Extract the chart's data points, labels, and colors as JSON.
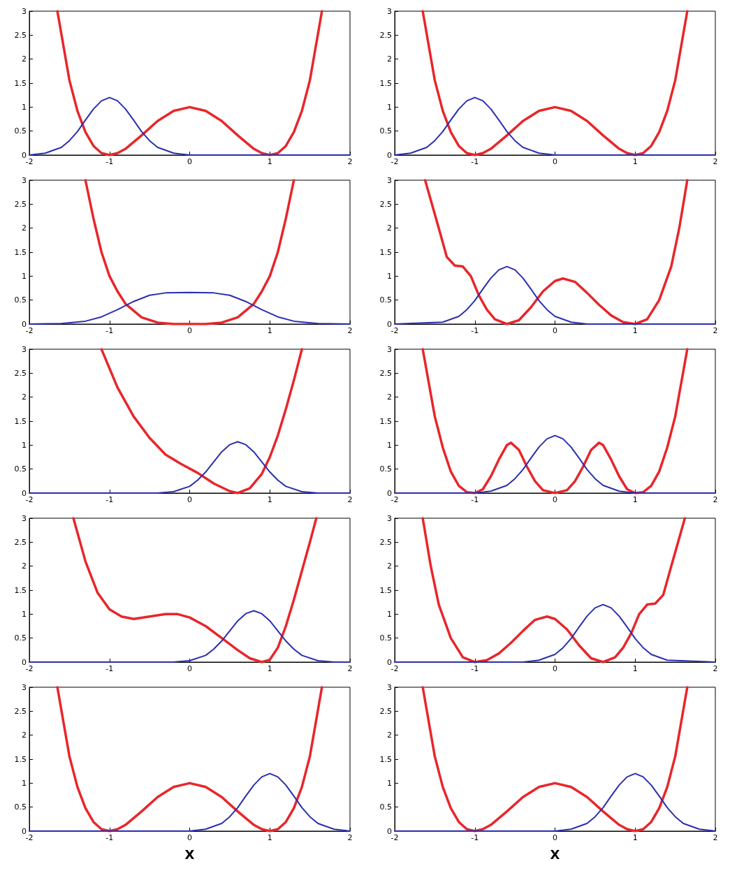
{
  "chart_data": [
    {
      "type": "line",
      "xlim": [
        -2,
        2
      ],
      "ylim": [
        0,
        3
      ],
      "xticks": [
        -2,
        -1,
        0,
        1,
        2
      ],
      "yticks": [
        0,
        0.5,
        1,
        1.5,
        2,
        2.5,
        3
      ],
      "series": [
        {
          "color": "#e8262a",
          "x": [
            -1.65,
            -1.5,
            -1.4,
            -1.3,
            -1.2,
            -1.1,
            -1,
            -0.9,
            -0.8,
            -0.6,
            -0.4,
            -0.2,
            0,
            0.2,
            0.4,
            0.6,
            0.8,
            0.9,
            1,
            1.1,
            1.2,
            1.3,
            1.4,
            1.5,
            1.65
          ],
          "values": [
            3,
            1.56,
            0.92,
            0.48,
            0.19,
            0.04,
            0,
            0.04,
            0.13,
            0.41,
            0.71,
            0.92,
            1,
            0.92,
            0.71,
            0.41,
            0.13,
            0.04,
            0,
            0.04,
            0.19,
            0.48,
            0.92,
            1.56,
            3
          ]
        },
        {
          "color": "#2a2fb0",
          "x": [
            -2,
            -1.8,
            -1.6,
            -1.5,
            -1.4,
            -1.3,
            -1.2,
            -1.1,
            -1,
            -0.9,
            -0.8,
            -0.7,
            -0.6,
            -0.5,
            -0.4,
            -0.2,
            0,
            2
          ],
          "values": [
            0,
            0.04,
            0.16,
            0.3,
            0.49,
            0.73,
            0.96,
            1.13,
            1.2,
            1.13,
            0.96,
            0.73,
            0.49,
            0.3,
            0.16,
            0.04,
            0,
            0
          ]
        }
      ]
    },
    {
      "type": "line",
      "xlim": [
        -2,
        2
      ],
      "ylim": [
        0,
        3
      ],
      "xticks": [
        -2,
        -1,
        0,
        1,
        2
      ],
      "yticks": [
        0,
        0.5,
        1,
        1.5,
        2,
        2.5,
        3
      ],
      "series": [
        {
          "color": "#e8262a",
          "x": [
            -1.65,
            -1.5,
            -1.4,
            -1.3,
            -1.2,
            -1.1,
            -1,
            -0.9,
            -0.8,
            -0.6,
            -0.4,
            -0.2,
            0,
            0.2,
            0.4,
            0.6,
            0.8,
            0.9,
            1,
            1.1,
            1.2,
            1.3,
            1.4,
            1.5,
            1.65
          ],
          "values": [
            3,
            1.56,
            0.92,
            0.48,
            0.19,
            0.04,
            0,
            0.04,
            0.13,
            0.41,
            0.71,
            0.92,
            1,
            0.92,
            0.71,
            0.41,
            0.13,
            0.04,
            0,
            0.04,
            0.19,
            0.48,
            0.92,
            1.56,
            3
          ]
        },
        {
          "color": "#2a2fb0",
          "x": [
            -2,
            -1.8,
            -1.6,
            -1.5,
            -1.4,
            -1.3,
            -1.2,
            -1.1,
            -1,
            -0.9,
            -0.8,
            -0.7,
            -0.6,
            -0.5,
            -0.4,
            -0.2,
            0,
            2
          ],
          "values": [
            0,
            0.04,
            0.16,
            0.3,
            0.49,
            0.73,
            0.96,
            1.13,
            1.2,
            1.13,
            0.96,
            0.73,
            0.49,
            0.3,
            0.16,
            0.04,
            0,
            0
          ]
        }
      ]
    },
    {
      "type": "line",
      "xlim": [
        -2,
        2
      ],
      "ylim": [
        0,
        3
      ],
      "xticks": [
        -2,
        -1,
        0,
        1,
        2
      ],
      "yticks": [
        0,
        0.5,
        1,
        1.5,
        2,
        2.5,
        3
      ],
      "series": [
        {
          "color": "#e8262a",
          "x": [
            -1.3,
            -1.2,
            -1.1,
            -1,
            -0.9,
            -0.8,
            -0.6,
            -0.4,
            -0.2,
            0,
            0.2,
            0.4,
            0.6,
            0.8,
            0.9,
            1,
            1.1,
            1.2,
            1.3
          ],
          "values": [
            3,
            2.2,
            1.5,
            1,
            0.68,
            0.42,
            0.14,
            0.03,
            0,
            0,
            0,
            0.03,
            0.14,
            0.42,
            0.68,
            1,
            1.5,
            2.2,
            3
          ]
        },
        {
          "color": "#2a2fb0",
          "x": [
            -2,
            -1.6,
            -1.3,
            -1.1,
            -0.9,
            -0.7,
            -0.5,
            -0.3,
            0,
            0.3,
            0.5,
            0.7,
            0.9,
            1.1,
            1.3,
            1.6,
            2
          ],
          "values": [
            0,
            0.01,
            0.06,
            0.15,
            0.3,
            0.47,
            0.6,
            0.65,
            0.66,
            0.65,
            0.6,
            0.47,
            0.3,
            0.15,
            0.06,
            0.01,
            0
          ]
        }
      ]
    },
    {
      "type": "line",
      "xlim": [
        -2,
        2
      ],
      "ylim": [
        0,
        3
      ],
      "xticks": [
        -2,
        -1,
        0,
        1,
        2
      ],
      "yticks": [
        0,
        0.5,
        1,
        1.5,
        2,
        2.5,
        3
      ],
      "series": [
        {
          "color": "#e8262a",
          "x": [
            -1.62,
            -1.45,
            -1.35,
            -1.25,
            -1.15,
            -1.05,
            -0.95,
            -0.85,
            -0.75,
            -0.6,
            -0.45,
            -0.3,
            -0.15,
            0,
            0.1,
            0.25,
            0.4,
            0.55,
            0.7,
            0.85,
            1,
            1.15,
            1.3,
            1.45,
            1.55,
            1.65
          ],
          "values": [
            3,
            2,
            1.4,
            1.22,
            1.2,
            1,
            0.6,
            0.3,
            0.1,
            0,
            0.08,
            0.35,
            0.68,
            0.9,
            0.95,
            0.88,
            0.65,
            0.4,
            0.18,
            0.04,
            0,
            0.1,
            0.5,
            1.2,
            2,
            3
          ]
        },
        {
          "color": "#2a2fb0",
          "x": [
            -2,
            -1.4,
            -1.2,
            -1.1,
            -1,
            -0.9,
            -0.8,
            -0.7,
            -0.6,
            -0.5,
            -0.4,
            -0.3,
            -0.2,
            -0.1,
            0,
            0.2,
            0.4,
            2
          ],
          "values": [
            0,
            0.04,
            0.16,
            0.3,
            0.49,
            0.73,
            0.96,
            1.13,
            1.2,
            1.13,
            0.96,
            0.73,
            0.49,
            0.3,
            0.16,
            0.04,
            0,
            0
          ]
        }
      ]
    },
    {
      "type": "line",
      "xlim": [
        -2,
        2
      ],
      "ylim": [
        0,
        3
      ],
      "xticks": [
        -2,
        -1,
        0,
        1,
        2
      ],
      "yticks": [
        0,
        0.5,
        1,
        1.5,
        2,
        2.5,
        3
      ],
      "series": [
        {
          "color": "#e8262a",
          "x": [
            -1.1,
            -0.9,
            -0.7,
            -0.5,
            -0.3,
            -0.1,
            0.1,
            0.3,
            0.5,
            0.6,
            0.75,
            0.9,
            1,
            1.1,
            1.2,
            1.3,
            1.4
          ],
          "values": [
            3,
            2.2,
            1.6,
            1.15,
            0.8,
            0.6,
            0.42,
            0.2,
            0.04,
            0,
            0.1,
            0.4,
            0.75,
            1.2,
            1.75,
            2.35,
            3
          ]
        },
        {
          "color": "#2a2fb0",
          "x": [
            -2,
            -0.4,
            -0.2,
            0,
            0.1,
            0.2,
            0.3,
            0.4,
            0.5,
            0.6,
            0.7,
            0.8,
            0.9,
            1,
            1.1,
            1.2,
            1.4,
            1.6,
            2
          ],
          "values": [
            0,
            0,
            0.03,
            0.14,
            0.27,
            0.44,
            0.65,
            0.86,
            1.01,
            1.07,
            1.01,
            0.86,
            0.65,
            0.44,
            0.27,
            0.14,
            0.03,
            0,
            0
          ]
        }
      ]
    },
    {
      "type": "line",
      "xlim": [
        -2,
        2
      ],
      "ylim": [
        0,
        3
      ],
      "xticks": [
        -2,
        -1,
        0,
        1,
        2
      ],
      "yticks": [
        0,
        0.5,
        1,
        1.5,
        2,
        2.5,
        3
      ],
      "series": [
        {
          "color": "#e8262a",
          "x": [
            -1.65,
            -1.5,
            -1.4,
            -1.3,
            -1.2,
            -1.1,
            -1,
            -0.9,
            -0.8,
            -0.7,
            -0.6,
            -0.55,
            -0.45,
            -0.35,
            -0.25,
            -0.15,
            0,
            0.15,
            0.25,
            0.35,
            0.45,
            0.55,
            0.6,
            0.7,
            0.8,
            0.9,
            1,
            1.1,
            1.2,
            1.3,
            1.4,
            1.5,
            1.65
          ],
          "values": [
            3,
            1.6,
            0.95,
            0.45,
            0.15,
            0.02,
            0,
            0.08,
            0.35,
            0.7,
            1,
            1.05,
            0.9,
            0.55,
            0.25,
            0.06,
            0,
            0.06,
            0.25,
            0.55,
            0.9,
            1.05,
            1,
            0.7,
            0.35,
            0.08,
            0,
            0.02,
            0.15,
            0.45,
            0.95,
            1.6,
            3
          ]
        },
        {
          "color": "#2a2fb0",
          "x": [
            -2,
            -1,
            -0.8,
            -0.6,
            -0.5,
            -0.4,
            -0.3,
            -0.2,
            -0.1,
            0,
            0.1,
            0.2,
            0.3,
            0.4,
            0.5,
            0.6,
            0.8,
            1,
            2
          ],
          "values": [
            0,
            0,
            0.04,
            0.16,
            0.3,
            0.49,
            0.73,
            0.96,
            1.13,
            1.2,
            1.13,
            0.96,
            0.73,
            0.49,
            0.3,
            0.16,
            0.04,
            0,
            0
          ]
        }
      ]
    },
    {
      "type": "line",
      "xlim": [
        -2,
        2
      ],
      "ylim": [
        0,
        3
      ],
      "xticks": [
        -2,
        -1,
        0,
        1,
        2
      ],
      "yticks": [
        0,
        0.5,
        1,
        1.5,
        2,
        2.5,
        3
      ],
      "series": [
        {
          "color": "#e8262a",
          "x": [
            -1.45,
            -1.3,
            -1.15,
            -1,
            -0.85,
            -0.7,
            -0.5,
            -0.3,
            -0.15,
            0,
            0.2,
            0.4,
            0.6,
            0.75,
            0.9,
            1,
            1.1,
            1.2,
            1.3,
            1.4,
            1.5,
            1.58
          ],
          "values": [
            3,
            2.1,
            1.45,
            1.1,
            0.95,
            0.9,
            0.95,
            1,
            1,
            0.93,
            0.75,
            0.5,
            0.25,
            0.08,
            0,
            0.05,
            0.3,
            0.75,
            1.3,
            1.9,
            2.5,
            3
          ]
        },
        {
          "color": "#2a2fb0",
          "x": [
            -2,
            -0.2,
            0,
            0.2,
            0.3,
            0.4,
            0.5,
            0.6,
            0.7,
            0.8,
            0.9,
            1,
            1.1,
            1.2,
            1.3,
            1.4,
            1.6,
            1.8,
            2
          ],
          "values": [
            0,
            0,
            0.03,
            0.14,
            0.27,
            0.44,
            0.65,
            0.86,
            1.01,
            1.07,
            1.01,
            0.86,
            0.65,
            0.44,
            0.27,
            0.14,
            0.03,
            0,
            0
          ]
        }
      ]
    },
    {
      "type": "line",
      "xlim": [
        -2,
        2
      ],
      "ylim": [
        0,
        3
      ],
      "xticks": [
        -2,
        -1,
        0,
        1,
        2
      ],
      "yticks": [
        0,
        0.5,
        1,
        1.5,
        2,
        2.5,
        3
      ],
      "series": [
        {
          "color": "#e8262a",
          "x": [
            -1.65,
            -1.55,
            -1.45,
            -1.3,
            -1.15,
            -1,
            -0.85,
            -0.7,
            -0.55,
            -0.4,
            -0.25,
            -0.1,
            0,
            0.15,
            0.3,
            0.45,
            0.6,
            0.75,
            0.85,
            0.95,
            1.05,
            1.15,
            1.25,
            1.35,
            1.45,
            1.62
          ],
          "values": [
            3,
            2,
            1.2,
            0.5,
            0.1,
            0,
            0.04,
            0.18,
            0.4,
            0.65,
            0.88,
            0.95,
            0.9,
            0.68,
            0.35,
            0.08,
            0,
            0.1,
            0.3,
            0.6,
            1,
            1.2,
            1.22,
            1.4,
            2,
            3
          ]
        },
        {
          "color": "#2a2fb0",
          "x": [
            -2,
            -0.4,
            -0.2,
            0,
            0.1,
            0.2,
            0.3,
            0.4,
            0.5,
            0.6,
            0.7,
            0.8,
            0.9,
            1,
            1.1,
            1.2,
            1.4,
            2
          ],
          "values": [
            0,
            0,
            0.04,
            0.16,
            0.3,
            0.49,
            0.73,
            0.96,
            1.13,
            1.2,
            1.13,
            0.96,
            0.73,
            0.49,
            0.3,
            0.16,
            0.04,
            0
          ]
        }
      ]
    },
    {
      "type": "line",
      "xlabel": "X",
      "xlim": [
        -2,
        2
      ],
      "ylim": [
        0,
        3
      ],
      "xticks": [
        -2,
        -1,
        0,
        1,
        2
      ],
      "yticks": [
        0,
        0.5,
        1,
        1.5,
        2,
        2.5,
        3
      ],
      "series": [
        {
          "color": "#e8262a",
          "x": [
            -1.65,
            -1.5,
            -1.4,
            -1.3,
            -1.2,
            -1.1,
            -1,
            -0.9,
            -0.8,
            -0.6,
            -0.4,
            -0.2,
            0,
            0.2,
            0.4,
            0.6,
            0.8,
            0.9,
            1,
            1.1,
            1.2,
            1.3,
            1.4,
            1.5,
            1.65
          ],
          "values": [
            3,
            1.56,
            0.92,
            0.48,
            0.19,
            0.04,
            0,
            0.04,
            0.13,
            0.41,
            0.71,
            0.92,
            1,
            0.92,
            0.71,
            0.41,
            0.13,
            0.04,
            0,
            0.04,
            0.19,
            0.48,
            0.92,
            1.56,
            3
          ]
        },
        {
          "color": "#2a2fb0",
          "x": [
            -2,
            0,
            0.2,
            0.4,
            0.5,
            0.6,
            0.7,
            0.8,
            0.9,
            1,
            1.1,
            1.2,
            1.3,
            1.4,
            1.5,
            1.6,
            1.8,
            2
          ],
          "values": [
            0,
            0,
            0.04,
            0.16,
            0.3,
            0.49,
            0.73,
            0.96,
            1.13,
            1.2,
            1.13,
            0.96,
            0.73,
            0.49,
            0.3,
            0.16,
            0.04,
            0
          ]
        }
      ]
    },
    {
      "type": "line",
      "xlabel": "X",
      "xlim": [
        -2,
        2
      ],
      "ylim": [
        0,
        3
      ],
      "xticks": [
        -2,
        -1,
        0,
        1,
        2
      ],
      "yticks": [
        0,
        0.5,
        1,
        1.5,
        2,
        2.5,
        3
      ],
      "series": [
        {
          "color": "#e8262a",
          "x": [
            -1.65,
            -1.5,
            -1.4,
            -1.3,
            -1.2,
            -1.1,
            -1,
            -0.9,
            -0.8,
            -0.6,
            -0.4,
            -0.2,
            0,
            0.2,
            0.4,
            0.6,
            0.8,
            0.9,
            1,
            1.1,
            1.2,
            1.3,
            1.4,
            1.5,
            1.65
          ],
          "values": [
            3,
            1.56,
            0.92,
            0.48,
            0.19,
            0.04,
            0,
            0.04,
            0.13,
            0.41,
            0.71,
            0.92,
            1,
            0.92,
            0.71,
            0.41,
            0.13,
            0.04,
            0,
            0.04,
            0.19,
            0.48,
            0.92,
            1.56,
            3
          ]
        },
        {
          "color": "#2a2fb0",
          "x": [
            -2,
            0,
            0.2,
            0.4,
            0.5,
            0.6,
            0.7,
            0.8,
            0.9,
            1,
            1.1,
            1.2,
            1.3,
            1.4,
            1.5,
            1.6,
            1.8,
            2
          ],
          "values": [
            0,
            0,
            0.04,
            0.16,
            0.3,
            0.49,
            0.73,
            0.96,
            1.13,
            1.2,
            1.13,
            0.96,
            0.73,
            0.49,
            0.3,
            0.16,
            0.04,
            0
          ]
        }
      ]
    }
  ]
}
